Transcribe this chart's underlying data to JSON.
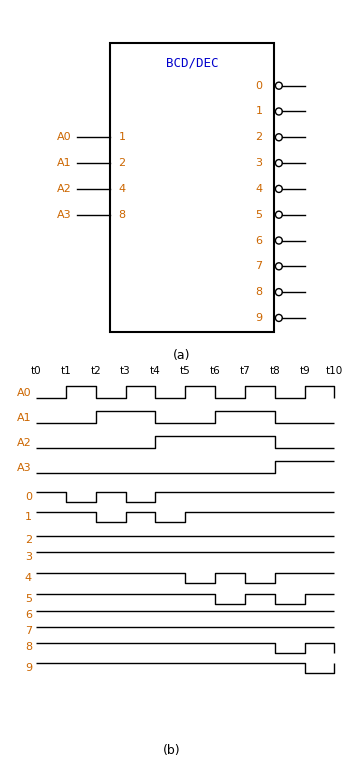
{
  "title_a": "(a)",
  "title_b": "(b)",
  "box_color": "#000000",
  "label_color_orange": "#cc6600",
  "label_color_blue": "#0000cc",
  "chip_title": "BCD/DEC",
  "input_labels": [
    "A0",
    "A1",
    "A2",
    "A3"
  ],
  "input_pins": [
    "1",
    "2",
    "4",
    "8"
  ],
  "output_pins": [
    "0",
    "1",
    "2",
    "3",
    "4",
    "5",
    "6",
    "7",
    "8",
    "9"
  ],
  "time_labels": [
    "t0",
    "t1",
    "t2",
    "t3",
    "t4",
    "t5",
    "t6",
    "t7",
    "t8",
    "t9",
    "t10"
  ],
  "signal_labels": [
    "A0",
    "A1",
    "A2",
    "A3",
    "0",
    "1",
    "2",
    "3",
    "4",
    "5",
    "6",
    "7",
    "8",
    "9"
  ],
  "waveforms": {
    "A0": [
      0,
      1,
      0,
      1,
      0,
      1,
      0,
      1,
      0,
      1,
      0
    ],
    "A1": [
      0,
      0,
      1,
      1,
      0,
      0,
      1,
      1,
      0,
      0,
      0
    ],
    "A2": [
      0,
      0,
      0,
      0,
      1,
      1,
      1,
      1,
      0,
      0,
      0
    ],
    "A3": [
      0,
      0,
      0,
      0,
      0,
      0,
      0,
      0,
      1,
      1,
      1
    ],
    "0": [
      1,
      0,
      1,
      0,
      1,
      1,
      1,
      1,
      1,
      1,
      1
    ],
    "1": [
      1,
      1,
      0,
      1,
      0,
      1,
      1,
      1,
      1,
      1,
      1
    ],
    "2": [
      1,
      1,
      1,
      1,
      1,
      1,
      1,
      1,
      1,
      1,
      1
    ],
    "3": [
      1,
      1,
      1,
      1,
      1,
      1,
      1,
      1,
      1,
      1,
      1
    ],
    "4": [
      1,
      1,
      1,
      1,
      1,
      0,
      1,
      0,
      1,
      1,
      1
    ],
    "5": [
      1,
      1,
      1,
      1,
      1,
      1,
      0,
      1,
      0,
      1,
      1
    ],
    "6": [
      1,
      1,
      1,
      1,
      1,
      1,
      1,
      1,
      1,
      1,
      1
    ],
    "7": [
      1,
      1,
      1,
      1,
      1,
      1,
      1,
      1,
      1,
      1,
      1
    ],
    "8": [
      1,
      1,
      1,
      1,
      1,
      1,
      1,
      1,
      0,
      1,
      0
    ],
    "9": [
      1,
      1,
      1,
      1,
      1,
      1,
      1,
      1,
      1,
      0,
      1
    ]
  },
  "n_times": 11,
  "figsize": [
    3.43,
    7.65
  ],
  "dpi": 100
}
